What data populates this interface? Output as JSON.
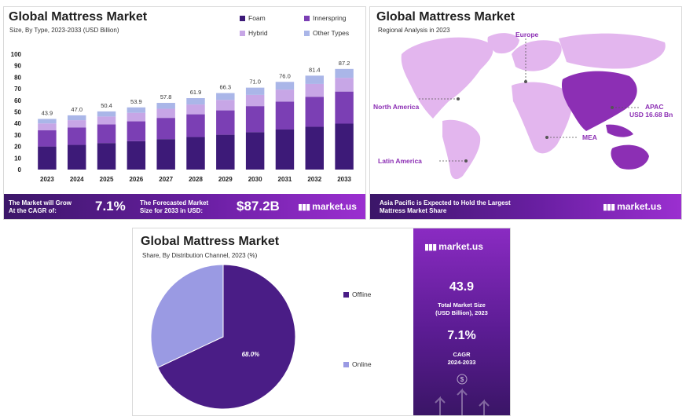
{
  "bar_panel": {
    "title": "Global Mattress Market",
    "subtitle": "Size, By Type, 2023-2033 (USD Billion)",
    "legend": [
      "Foam",
      "Innerspring",
      "Hybrid",
      "Other Types"
    ],
    "banner": {
      "grow_label_1": "The Market will Grow",
      "grow_label_2": "At the CAGR of:",
      "cagr": "7.1%",
      "forecast_label_1": "The Forecasted Market",
      "forecast_label_2": "Size for 2033 in USD:",
      "forecast_value": "$87.2B",
      "brand": "market.us"
    }
  },
  "map_panel": {
    "title": "Global Mattress Market",
    "subtitle": "Regional Analysis in 2023",
    "labels": {
      "europe": "Europe",
      "north_america": "North America",
      "apac_1": "APAC",
      "apac_2": "USD 16.68 Bn",
      "mea": "MEA",
      "latin_america": "Latin America"
    },
    "banner": {
      "text_1": "Asia Pacific is Expected to Hold the Largest",
      "text_2": "Mattress Market Share",
      "brand": "market.us"
    }
  },
  "pie_panel": {
    "title": "Global Mattress Market",
    "subtitle": "Share, By Distribution Channel, 2023 (%)",
    "legend": [
      "Offline",
      "Online"
    ],
    "side": {
      "brand": "market.us",
      "market_size": "43.9",
      "market_size_label_1": "Total Market Size",
      "market_size_label_2": "(USD Billion), 2023",
      "cagr": "7.1%",
      "cagr_label_1": "CAGR",
      "cagr_label_2": "2024-2033"
    }
  },
  "colors": {
    "foam": "#3d1a78",
    "innerspring": "#7b3fb4",
    "hybrid": "#c7a6e6",
    "other": "#aab6e8",
    "map_base": "#e3b6ee",
    "map_highlight": "#8c2fb4",
    "offline": "#4a1d86",
    "online": "#9a9ae3"
  },
  "chart_data": [
    {
      "type": "bar",
      "stacked": true,
      "title": "Global Mattress Market",
      "subtitle": "Size, By Type, 2023-2033 (USD Billion)",
      "categories": [
        "2023",
        "2024",
        "2025",
        "2026",
        "2027",
        "2028",
        "2029",
        "2030",
        "2031",
        "2032",
        "2033"
      ],
      "totals": [
        43.9,
        47.0,
        50.4,
        53.9,
        57.8,
        61.9,
        66.3,
        71.0,
        76.0,
        81.4,
        87.2
      ],
      "series": [
        {
          "name": "Foam",
          "values": [
            20.0,
            21.4,
            23.0,
            24.6,
            26.4,
            28.2,
            30.2,
            32.4,
            34.7,
            37.1,
            39.8
          ]
        },
        {
          "name": "Innerspring",
          "values": [
            14.0,
            15.0,
            16.1,
            17.2,
            18.4,
            19.7,
            21.1,
            22.6,
            24.2,
            26.0,
            27.8
          ]
        },
        {
          "name": "Hybrid",
          "values": [
            6.0,
            6.4,
            6.9,
            7.4,
            7.9,
            8.5,
            9.1,
            9.7,
            10.4,
            11.1,
            11.9
          ]
        },
        {
          "name": "Other Types",
          "values": [
            3.9,
            4.2,
            4.4,
            4.7,
            5.1,
            5.5,
            5.9,
            6.3,
            6.7,
            7.2,
            7.7
          ]
        }
      ],
      "yticks": [
        0,
        10,
        20,
        30,
        40,
        50,
        60,
        70,
        80,
        90,
        100
      ],
      "ylim": [
        0,
        100
      ],
      "legend": "top-right"
    },
    {
      "type": "pie",
      "title": "Global Mattress Market",
      "subtitle": "Share, By Distribution Channel, 2023 (%)",
      "slices": [
        {
          "label": "Offline",
          "value": 68.0,
          "value_label": "68.0%"
        },
        {
          "label": "Online",
          "value": 32.0
        }
      ],
      "legend": "right"
    }
  ]
}
